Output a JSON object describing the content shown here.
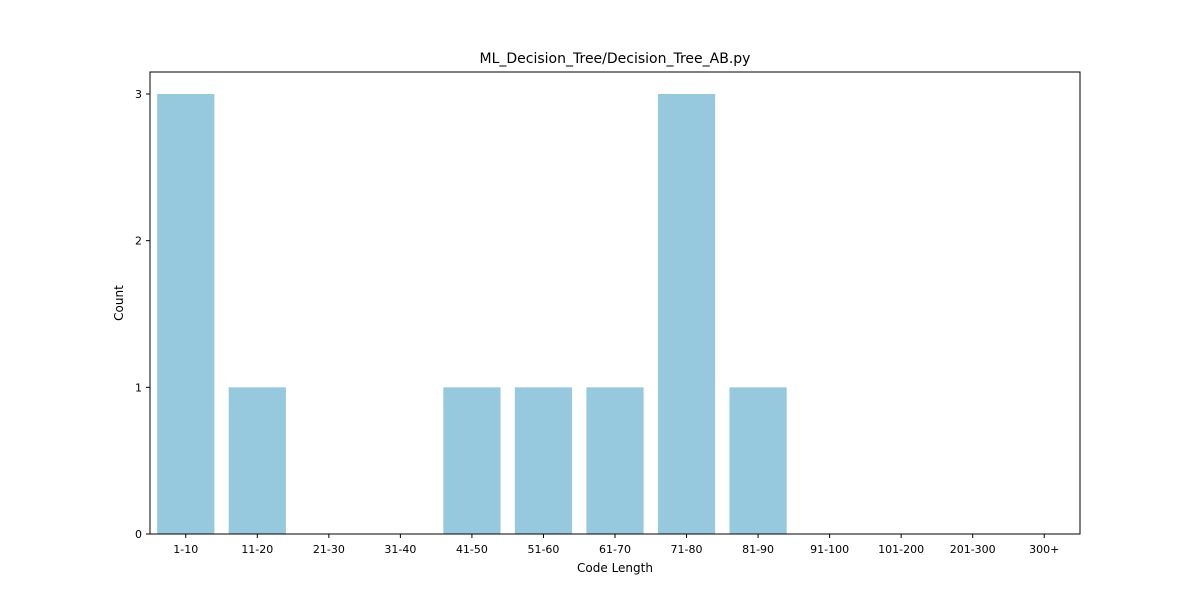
{
  "chart_data": {
    "type": "bar",
    "title": "ML_Decision_Tree/Decision_Tree_AB.py",
    "xlabel": "Code Length",
    "ylabel": "Count",
    "categories": [
      "1-10",
      "11-20",
      "21-30",
      "31-40",
      "41-50",
      "51-60",
      "61-70",
      "71-80",
      "81-90",
      "91-100",
      "101-200",
      "201-300",
      "300+"
    ],
    "values": [
      3,
      1,
      0,
      0,
      1,
      1,
      1,
      3,
      1,
      0,
      0,
      0,
      0
    ],
    "yticks": [
      0,
      1,
      2,
      3
    ],
    "ylim": [
      0,
      3.15
    ],
    "grid": false,
    "legend": false,
    "bar_color": "#96c9de"
  }
}
